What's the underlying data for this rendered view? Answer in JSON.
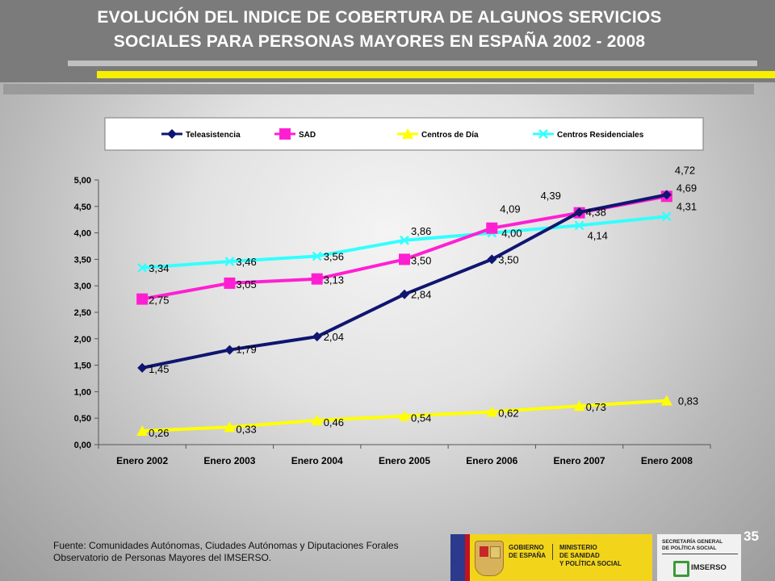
{
  "header": {
    "title_line1": "EVOLUCIÓN DEL INDICE DE COBERTURA DE ALGUNOS SERVICIOS",
    "title_line2": "SOCIALES PARA PERSONAS MAYORES EN ESPAÑA 2002 - 2008"
  },
  "colors": {
    "header_bg": "#7b7b7b",
    "accent_yellow": "#f6f000",
    "teleasistencia": "#0f1670",
    "sad": "#ff1fd2",
    "centros_dia": "#ffff00",
    "centros_residenciales": "#33ffff"
  },
  "chart_data": {
    "type": "line",
    "categories": [
      "Enero 2002",
      "Enero 2003",
      "Enero 2004",
      "Enero 2005",
      "Enero 2006",
      "Enero 2007",
      "Enero 2008"
    ],
    "ylim": [
      0,
      5
    ],
    "yticks": [
      "0,00",
      "0,50",
      "1,00",
      "1,50",
      "2,00",
      "2,50",
      "3,00",
      "3,50",
      "4,00",
      "4,50",
      "5,00"
    ],
    "grid": false,
    "legend_position": "top",
    "series": [
      {
        "name": "Teleasistencia",
        "marker": "diamond",
        "values": [
          1.45,
          1.79,
          2.04,
          2.84,
          3.5,
          4.39,
          4.72
        ],
        "labels": [
          "1,45",
          "1,79",
          "2,04",
          "2,84",
          "3,50",
          "4,39",
          "4,72"
        ]
      },
      {
        "name": "SAD",
        "marker": "square",
        "values": [
          2.75,
          3.05,
          3.13,
          3.5,
          4.09,
          4.38,
          4.69
        ],
        "labels": [
          "2,75",
          "3,05",
          "3,13",
          "3,50",
          "4,09",
          "4,38",
          "4,69"
        ]
      },
      {
        "name": "Centros de Día",
        "marker": "triangle",
        "values": [
          0.26,
          0.33,
          0.46,
          0.54,
          0.62,
          0.73,
          0.83
        ],
        "labels": [
          "0,26",
          "0,33",
          "0,46",
          "0,54",
          "0,62",
          "0,73",
          "0,83"
        ]
      },
      {
        "name": "Centros Residenciales",
        "marker": "x",
        "values": [
          3.34,
          3.46,
          3.56,
          3.86,
          4.0,
          4.14,
          4.31
        ],
        "labels": [
          "3,34",
          "3,46",
          "3,56",
          "3,86",
          "4,00",
          "4,14",
          "4,31"
        ]
      }
    ]
  },
  "footer": {
    "source_line1": "Fuente: Comunidades Autónomas, Ciudades Autónomas y Diputaciones Forales",
    "source_line2": "Observatorio de Personas Mayores del IMSERSO.",
    "page_number": "35"
  },
  "logos": {
    "gobierno_line1": "GOBIERNO",
    "gobierno_line2": "DE ESPAÑA",
    "ministerio_line1": "MINISTERIO",
    "ministerio_line2": "DE SANIDAD",
    "ministerio_line3": "Y POLÍTICA SOCIAL",
    "secretaria_line1": "SECRETARÍA GENERAL",
    "secretaria_line2": "DE POLÍTICA SOCIAL",
    "imserso": "IMSERSO"
  }
}
